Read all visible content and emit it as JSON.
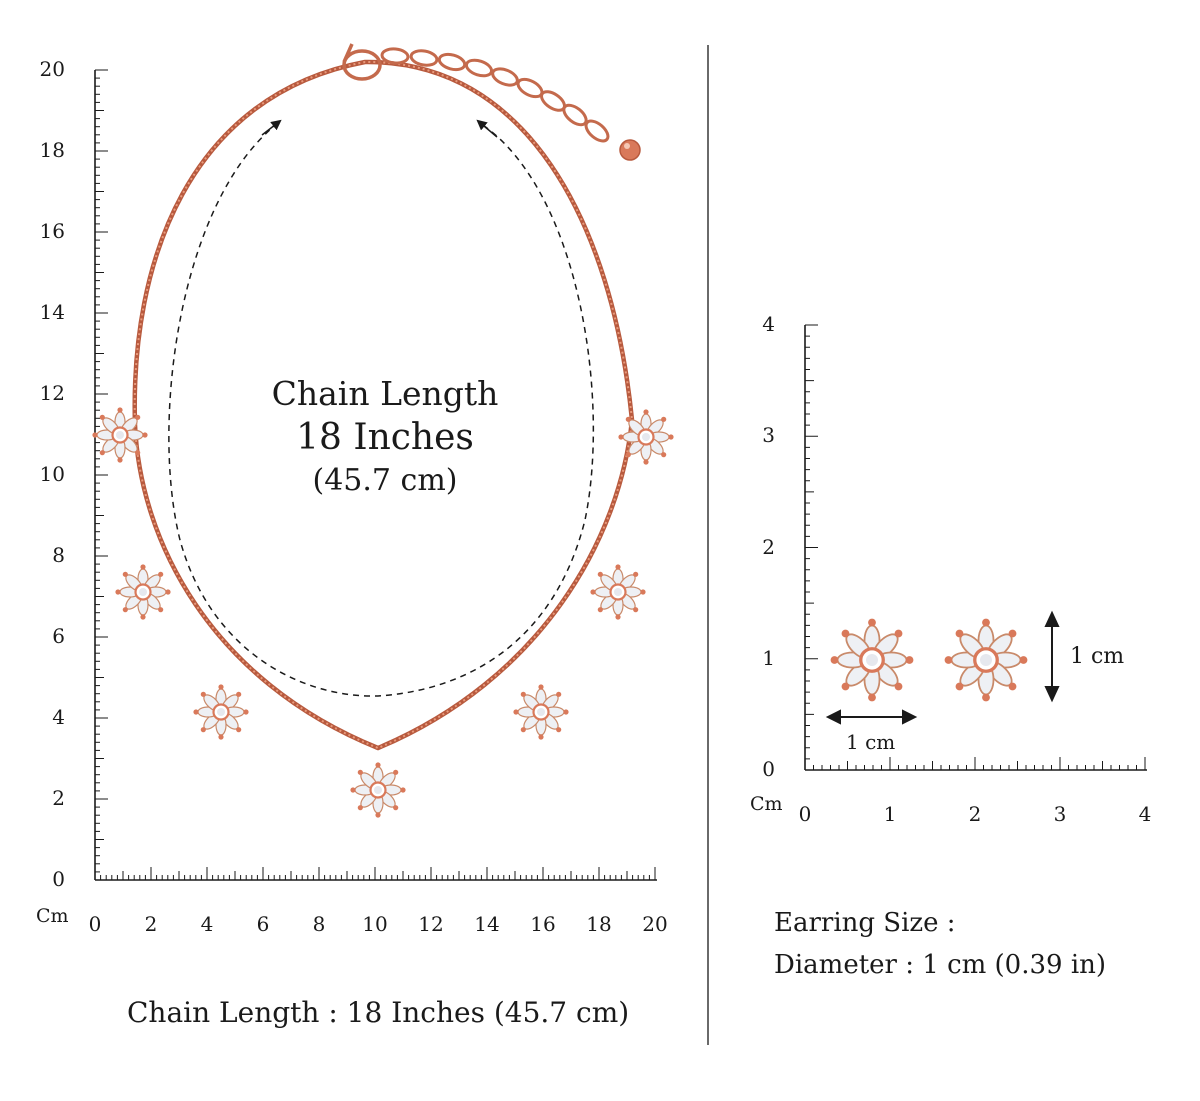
{
  "necklace": {
    "center_label": {
      "line1": "Chain Length",
      "line2": "18 Inches",
      "line3": "(45.7 cm)"
    },
    "caption": "Chain Length : 18 Inches (45.7 cm)",
    "ruler": {
      "unit": "Cm",
      "y_ticks": [
        "0",
        "2",
        "4",
        "6",
        "8",
        "10",
        "12",
        "14",
        "16",
        "18",
        "20"
      ],
      "x_ticks": [
        "0",
        "2",
        "4",
        "6",
        "8",
        "10",
        "12",
        "14",
        "16",
        "18",
        "20"
      ]
    }
  },
  "earring": {
    "ruler": {
      "unit": "Cm",
      "y_ticks": [
        "0",
        "1",
        "2",
        "3",
        "4"
      ],
      "x_ticks": [
        "0",
        "1",
        "2",
        "3",
        "4"
      ]
    },
    "width_label": "1 cm",
    "height_label": "1 cm",
    "size_title": "Earring Size :",
    "size_detail": "Diameter : 1 cm (0.39 in)"
  },
  "colors": {
    "rose_gold": "#d9795a",
    "rose_gold_dark": "#b85a3e",
    "crystal": "#f1f2f5",
    "ink": "#1a1a1a"
  }
}
